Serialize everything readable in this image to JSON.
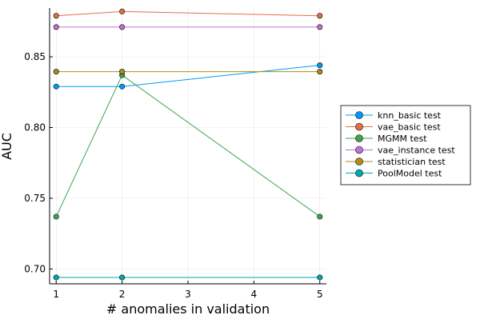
{
  "chart_data": {
    "type": "line",
    "title": "",
    "xlabel": "# anomalies in validation",
    "ylabel": "AUC",
    "x": [
      1,
      2,
      5
    ],
    "xlim": [
      0.9,
      5.1
    ],
    "ylim": [
      0.6895,
      0.8845
    ],
    "xticks": [
      1,
      2,
      3,
      4,
      5
    ],
    "yticks": [
      0.7,
      0.75,
      0.8,
      0.85
    ],
    "ytick_labels": [
      "0.70",
      "0.75",
      "0.80",
      "0.85"
    ],
    "grid": true,
    "legend_position": "right",
    "series": [
      {
        "name": "knn_basic test",
        "values": [
          0.829,
          0.829,
          0.844
        ],
        "color": "#009AFA"
      },
      {
        "name": "vae_basic test",
        "values": [
          0.879,
          0.882,
          0.879
        ],
        "color": "#E26F46"
      },
      {
        "name": "MGMM test",
        "values": [
          0.737,
          0.837,
          0.737
        ],
        "color": "#3EA44E"
      },
      {
        "name": "vae_instance test",
        "values": [
          0.871,
          0.871,
          0.871
        ],
        "color": "#C270D3"
      },
      {
        "name": "statistician test",
        "values": [
          0.8395,
          0.8395,
          0.8395
        ],
        "color": "#AD8F18"
      },
      {
        "name": "PoolModel test",
        "values": [
          0.694,
          0.694,
          0.694
        ],
        "color": "#00A9AD"
      }
    ]
  }
}
